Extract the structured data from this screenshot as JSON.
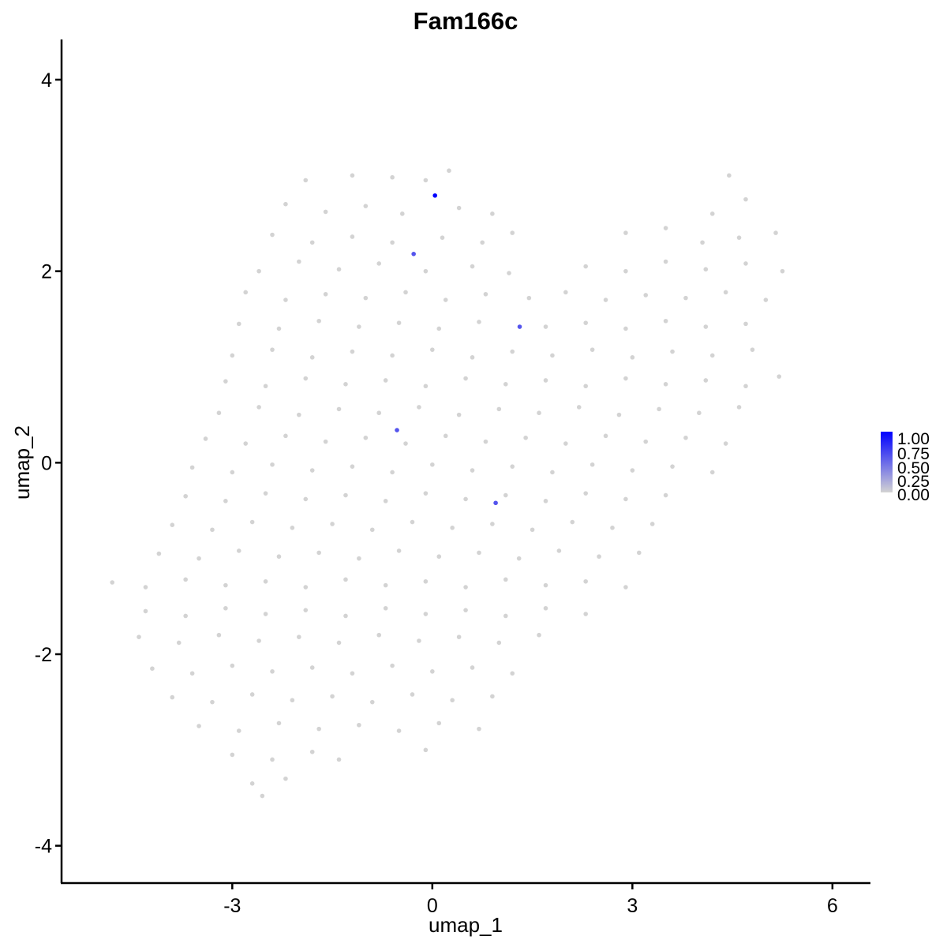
{
  "chart_data": {
    "type": "scatter",
    "title": "Fam166c",
    "xlabel": "umap_1",
    "ylabel": "umap_2",
    "xlim": [
      -5.56,
      6.57
    ],
    "ylim": [
      -4.39,
      4.42
    ],
    "xticks": [
      -3,
      0,
      3,
      6
    ],
    "yticks": [
      -4,
      -2,
      0,
      2,
      4
    ],
    "grid": false,
    "legend": {
      "placement": "right",
      "type": "colorbar",
      "labels": [
        "1.00",
        "0.75",
        "0.50",
        "0.25",
        "0.00"
      ],
      "low_color": "#D3D3D3",
      "high_color": "#0000FF"
    },
    "expressing_points": [
      {
        "x": 0.04,
        "y": 2.79,
        "value": 1.0
      },
      {
        "x": -0.28,
        "y": 2.18,
        "value": 0.6
      },
      {
        "x": 1.31,
        "y": 1.42,
        "value": 0.6
      },
      {
        "x": -0.53,
        "y": 0.34,
        "value": 0.6
      },
      {
        "x": 0.95,
        "y": -0.42,
        "value": 0.6
      }
    ],
    "zero_points": [
      [
        -1.9,
        2.95
      ],
      [
        -1.2,
        3.0
      ],
      [
        -0.6,
        2.98
      ],
      [
        -0.1,
        2.95
      ],
      [
        0.25,
        3.05
      ],
      [
        4.45,
        3.0
      ],
      [
        -2.2,
        2.7
      ],
      [
        -1.6,
        2.62
      ],
      [
        -1.0,
        2.68
      ],
      [
        -0.45,
        2.6
      ],
      [
        0.4,
        2.66
      ],
      [
        0.9,
        2.6
      ],
      [
        4.2,
        2.6
      ],
      [
        4.7,
        2.75
      ],
      [
        -2.4,
        2.38
      ],
      [
        -1.8,
        2.3
      ],
      [
        -1.2,
        2.36
      ],
      [
        -0.6,
        2.3
      ],
      [
        0.15,
        2.35
      ],
      [
        0.75,
        2.3
      ],
      [
        1.2,
        2.4
      ],
      [
        2.9,
        2.4
      ],
      [
        3.5,
        2.45
      ],
      [
        4.05,
        2.3
      ],
      [
        4.6,
        2.35
      ],
      [
        5.15,
        2.4
      ],
      [
        -2.6,
        2.0
      ],
      [
        -2.0,
        2.1
      ],
      [
        -1.4,
        2.02
      ],
      [
        -0.8,
        2.08
      ],
      [
        -0.1,
        2.0
      ],
      [
        0.6,
        2.05
      ],
      [
        1.15,
        1.98
      ],
      [
        2.3,
        2.05
      ],
      [
        2.9,
        2.0
      ],
      [
        3.5,
        2.1
      ],
      [
        4.1,
        2.02
      ],
      [
        4.7,
        2.08
      ],
      [
        5.25,
        2.0
      ],
      [
        -2.8,
        1.78
      ],
      [
        -2.2,
        1.7
      ],
      [
        -1.6,
        1.76
      ],
      [
        -1.0,
        1.72
      ],
      [
        -0.4,
        1.78
      ],
      [
        0.2,
        1.7
      ],
      [
        0.8,
        1.76
      ],
      [
        1.45,
        1.72
      ],
      [
        2.0,
        1.78
      ],
      [
        2.6,
        1.7
      ],
      [
        3.2,
        1.75
      ],
      [
        3.8,
        1.72
      ],
      [
        4.4,
        1.78
      ],
      [
        5.0,
        1.7
      ],
      [
        -2.9,
        1.45
      ],
      [
        -2.3,
        1.4
      ],
      [
        -1.7,
        1.48
      ],
      [
        -1.1,
        1.42
      ],
      [
        -0.5,
        1.46
      ],
      [
        0.1,
        1.4
      ],
      [
        0.7,
        1.47
      ],
      [
        1.7,
        1.42
      ],
      [
        2.3,
        1.46
      ],
      [
        2.9,
        1.4
      ],
      [
        3.5,
        1.48
      ],
      [
        4.1,
        1.42
      ],
      [
        4.7,
        1.45
      ],
      [
        -3.0,
        1.12
      ],
      [
        -2.4,
        1.18
      ],
      [
        -1.8,
        1.1
      ],
      [
        -1.2,
        1.16
      ],
      [
        -0.6,
        1.12
      ],
      [
        0.0,
        1.18
      ],
      [
        0.6,
        1.1
      ],
      [
        1.2,
        1.16
      ],
      [
        1.8,
        1.12
      ],
      [
        2.4,
        1.18
      ],
      [
        3.0,
        1.1
      ],
      [
        3.6,
        1.16
      ],
      [
        4.2,
        1.12
      ],
      [
        4.8,
        1.18
      ],
      [
        -3.1,
        0.85
      ],
      [
        -2.5,
        0.8
      ],
      [
        -1.9,
        0.88
      ],
      [
        -1.3,
        0.82
      ],
      [
        -0.7,
        0.86
      ],
      [
        -0.1,
        0.8
      ],
      [
        0.5,
        0.88
      ],
      [
        1.1,
        0.82
      ],
      [
        1.7,
        0.86
      ],
      [
        2.3,
        0.8
      ],
      [
        2.9,
        0.88
      ],
      [
        3.5,
        0.82
      ],
      [
        4.1,
        0.86
      ],
      [
        4.7,
        0.8
      ],
      [
        5.2,
        0.9
      ],
      [
        -3.2,
        0.52
      ],
      [
        -2.6,
        0.58
      ],
      [
        -2.0,
        0.5
      ],
      [
        -1.4,
        0.56
      ],
      [
        -0.8,
        0.52
      ],
      [
        -0.2,
        0.58
      ],
      [
        0.4,
        0.5
      ],
      [
        1.0,
        0.56
      ],
      [
        1.6,
        0.52
      ],
      [
        2.2,
        0.58
      ],
      [
        2.8,
        0.5
      ],
      [
        3.4,
        0.56
      ],
      [
        4.0,
        0.52
      ],
      [
        4.6,
        0.58
      ],
      [
        -3.4,
        0.25
      ],
      [
        -2.8,
        0.2
      ],
      [
        -2.2,
        0.28
      ],
      [
        -1.6,
        0.22
      ],
      [
        -1.0,
        0.26
      ],
      [
        -0.4,
        0.2
      ],
      [
        0.2,
        0.28
      ],
      [
        0.8,
        0.22
      ],
      [
        1.4,
        0.26
      ],
      [
        2.0,
        0.2
      ],
      [
        2.6,
        0.28
      ],
      [
        3.2,
        0.22
      ],
      [
        3.8,
        0.26
      ],
      [
        4.4,
        0.2
      ],
      [
        -3.6,
        -0.05
      ],
      [
        -3.0,
        -0.1
      ],
      [
        -2.4,
        -0.02
      ],
      [
        -1.8,
        -0.08
      ],
      [
        -1.2,
        -0.04
      ],
      [
        -0.6,
        -0.1
      ],
      [
        0.0,
        -0.02
      ],
      [
        0.6,
        -0.08
      ],
      [
        1.2,
        -0.04
      ],
      [
        1.8,
        -0.1
      ],
      [
        2.4,
        -0.02
      ],
      [
        3.0,
        -0.08
      ],
      [
        3.6,
        -0.04
      ],
      [
        4.2,
        -0.1
      ],
      [
        -3.7,
        -0.35
      ],
      [
        -3.1,
        -0.4
      ],
      [
        -2.5,
        -0.32
      ],
      [
        -1.9,
        -0.38
      ],
      [
        -1.3,
        -0.34
      ],
      [
        -0.7,
        -0.4
      ],
      [
        -0.1,
        -0.32
      ],
      [
        0.5,
        -0.38
      ],
      [
        1.1,
        -0.34
      ],
      [
        1.7,
        -0.4
      ],
      [
        2.3,
        -0.32
      ],
      [
        2.9,
        -0.38
      ],
      [
        3.5,
        -0.34
      ],
      [
        -3.9,
        -0.65
      ],
      [
        -3.3,
        -0.7
      ],
      [
        -2.7,
        -0.62
      ],
      [
        -2.1,
        -0.68
      ],
      [
        -1.5,
        -0.64
      ],
      [
        -0.9,
        -0.7
      ],
      [
        -0.3,
        -0.62
      ],
      [
        0.3,
        -0.68
      ],
      [
        0.9,
        -0.64
      ],
      [
        1.5,
        -0.7
      ],
      [
        2.1,
        -0.62
      ],
      [
        2.7,
        -0.68
      ],
      [
        3.3,
        -0.64
      ],
      [
        -4.1,
        -0.95
      ],
      [
        -3.5,
        -1.0
      ],
      [
        -2.9,
        -0.92
      ],
      [
        -2.3,
        -0.98
      ],
      [
        -1.7,
        -0.94
      ],
      [
        -1.1,
        -1.0
      ],
      [
        -0.5,
        -0.92
      ],
      [
        0.1,
        -0.98
      ],
      [
        0.7,
        -0.94
      ],
      [
        1.3,
        -1.0
      ],
      [
        1.9,
        -0.92
      ],
      [
        2.5,
        -0.98
      ],
      [
        3.1,
        -0.94
      ],
      [
        -4.8,
        -1.25
      ],
      [
        -4.3,
        -1.3
      ],
      [
        -3.7,
        -1.22
      ],
      [
        -3.1,
        -1.28
      ],
      [
        -2.5,
        -1.24
      ],
      [
        -1.9,
        -1.3
      ],
      [
        -1.3,
        -1.22
      ],
      [
        -0.7,
        -1.28
      ],
      [
        -0.1,
        -1.24
      ],
      [
        0.5,
        -1.3
      ],
      [
        1.1,
        -1.22
      ],
      [
        1.7,
        -1.28
      ],
      [
        2.3,
        -1.24
      ],
      [
        2.9,
        -1.3
      ],
      [
        -4.3,
        -1.55
      ],
      [
        -3.7,
        -1.6
      ],
      [
        -3.1,
        -1.52
      ],
      [
        -2.5,
        -1.58
      ],
      [
        -1.9,
        -1.54
      ],
      [
        -1.3,
        -1.6
      ],
      [
        -0.7,
        -1.52
      ],
      [
        -0.1,
        -1.58
      ],
      [
        0.5,
        -1.54
      ],
      [
        1.1,
        -1.6
      ],
      [
        1.7,
        -1.52
      ],
      [
        2.3,
        -1.58
      ],
      [
        -4.4,
        -1.82
      ],
      [
        -3.8,
        -1.88
      ],
      [
        -3.2,
        -1.8
      ],
      [
        -2.6,
        -1.86
      ],
      [
        -2.0,
        -1.82
      ],
      [
        -1.4,
        -1.88
      ],
      [
        -0.8,
        -1.8
      ],
      [
        -0.2,
        -1.86
      ],
      [
        0.4,
        -1.82
      ],
      [
        1.0,
        -1.88
      ],
      [
        1.6,
        -1.8
      ],
      [
        -4.2,
        -2.15
      ],
      [
        -3.6,
        -2.2
      ],
      [
        -3.0,
        -2.12
      ],
      [
        -2.4,
        -2.18
      ],
      [
        -1.8,
        -2.14
      ],
      [
        -1.2,
        -2.2
      ],
      [
        -0.6,
        -2.12
      ],
      [
        0.0,
        -2.18
      ],
      [
        0.6,
        -2.14
      ],
      [
        1.2,
        -2.2
      ],
      [
        -3.9,
        -2.45
      ],
      [
        -3.3,
        -2.5
      ],
      [
        -2.7,
        -2.42
      ],
      [
        -2.1,
        -2.48
      ],
      [
        -1.5,
        -2.44
      ],
      [
        -0.9,
        -2.5
      ],
      [
        -0.3,
        -2.42
      ],
      [
        0.3,
        -2.48
      ],
      [
        0.9,
        -2.44
      ],
      [
        -3.5,
        -2.75
      ],
      [
        -2.9,
        -2.8
      ],
      [
        -2.3,
        -2.72
      ],
      [
        -1.7,
        -2.78
      ],
      [
        -1.1,
        -2.74
      ],
      [
        -0.5,
        -2.8
      ],
      [
        0.1,
        -2.72
      ],
      [
        0.7,
        -2.78
      ],
      [
        -3.0,
        -3.05
      ],
      [
        -2.4,
        -3.1
      ],
      [
        -1.8,
        -3.02
      ],
      [
        -1.4,
        -3.1
      ],
      [
        -0.1,
        -3.0
      ],
      [
        -2.7,
        -3.35
      ],
      [
        -2.2,
        -3.3
      ],
      [
        -2.55,
        -3.48
      ]
    ]
  }
}
